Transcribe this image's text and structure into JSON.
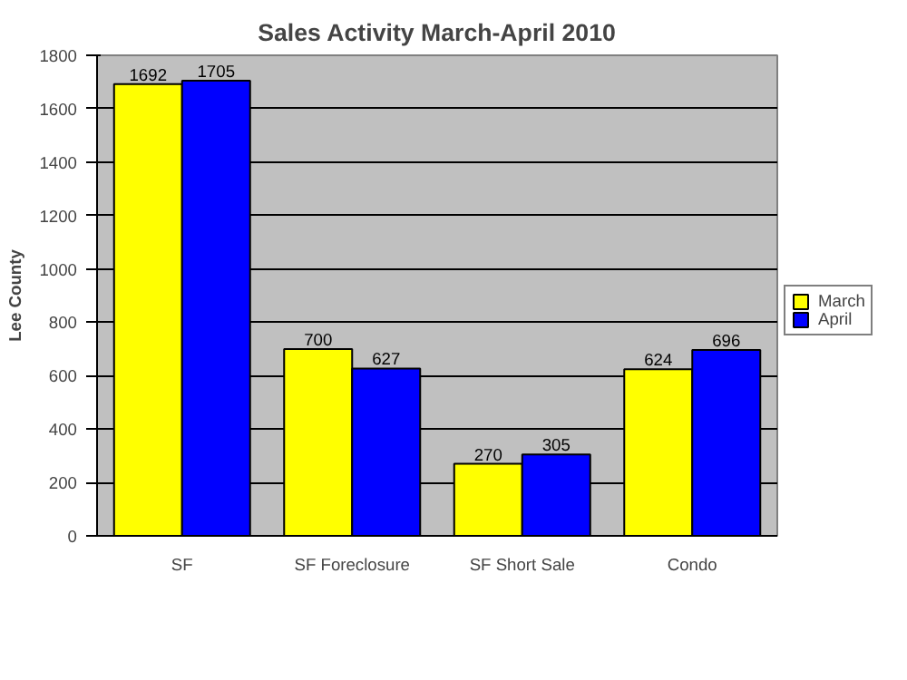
{
  "chart_data": {
    "type": "bar",
    "title": "Sales Activity March-April 2010",
    "ylabel": "Lee County",
    "categories": [
      "SF",
      "SF Foreclosure",
      "SF Short Sale",
      "Condo"
    ],
    "series": [
      {
        "name": "March",
        "color": "#ffff00",
        "values": [
          1692,
          700,
          270,
          624
        ]
      },
      {
        "name": "April",
        "color": "#0000ff",
        "values": [
          1705,
          627,
          305,
          696
        ]
      }
    ],
    "ylim": [
      0,
      1800
    ],
    "yticks": [
      0,
      200,
      400,
      600,
      800,
      1000,
      1200,
      1400,
      1600,
      1800
    ],
    "grid": "y",
    "legend": "right",
    "data_labels": true
  }
}
